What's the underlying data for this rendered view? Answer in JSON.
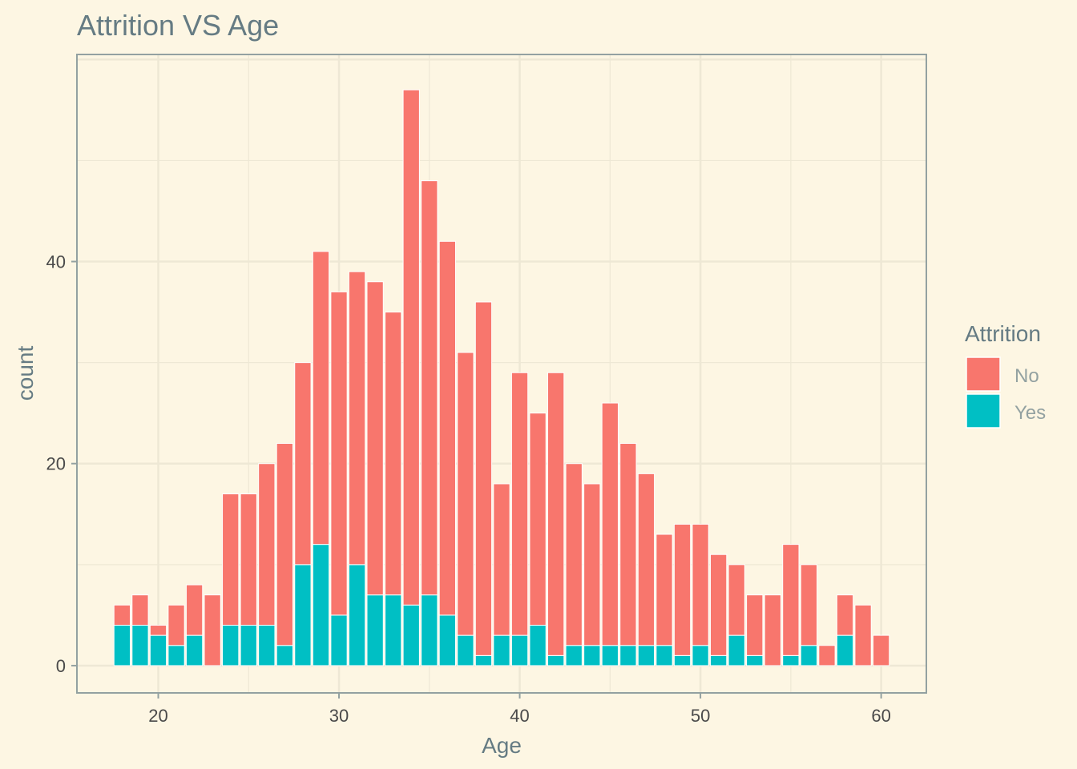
{
  "chart_data": {
    "type": "bar",
    "stacked": true,
    "title": "Attrition VS Age",
    "xlabel": "Age",
    "ylabel": "count",
    "x": [
      18,
      19,
      20,
      21,
      22,
      23,
      24,
      25,
      26,
      27,
      28,
      29,
      30,
      31,
      32,
      33,
      34,
      35,
      36,
      37,
      38,
      39,
      40,
      41,
      42,
      43,
      44,
      45,
      46,
      47,
      48,
      49,
      50,
      51,
      52,
      53,
      54,
      55,
      56,
      57,
      58,
      59,
      60
    ],
    "series": [
      {
        "name": "Yes",
        "color": "#00bfc4",
        "values": [
          4,
          4,
          3,
          2,
          3,
          0,
          4,
          4,
          4,
          2,
          10,
          12,
          5,
          10,
          7,
          7,
          6,
          7,
          5,
          3,
          1,
          3,
          3,
          4,
          1,
          2,
          2,
          2,
          2,
          2,
          2,
          1,
          2,
          1,
          3,
          1,
          0,
          1,
          2,
          0,
          3,
          0,
          0
        ]
      },
      {
        "name": "No",
        "color": "#f8766d",
        "values": [
          2,
          3,
          1,
          4,
          5,
          7,
          13,
          13,
          16,
          20,
          20,
          29,
          32,
          29,
          31,
          28,
          51,
          41,
          37,
          28,
          35,
          15,
          26,
          21,
          28,
          18,
          16,
          24,
          20,
          17,
          11,
          13,
          12,
          10,
          7,
          6,
          7,
          11,
          8,
          2,
          4,
          6,
          3
        ]
      }
    ],
    "xlim": [
      15.5,
      62.5
    ],
    "ylim": [
      -2.7,
      60.5
    ],
    "x_ticks": [
      20,
      30,
      40,
      50,
      60
    ],
    "y_ticks": [
      0,
      20,
      40
    ],
    "legend": {
      "title": "Attrition",
      "placement": "right",
      "entries": [
        {
          "label": "No",
          "color": "#f8766d"
        },
        {
          "label": "Yes",
          "color": "#00bfc4"
        }
      ]
    },
    "grid": true,
    "background": "#fdf6e3",
    "gridline_color": "#eee8d5",
    "panel_border_color": "#93a1a1"
  }
}
